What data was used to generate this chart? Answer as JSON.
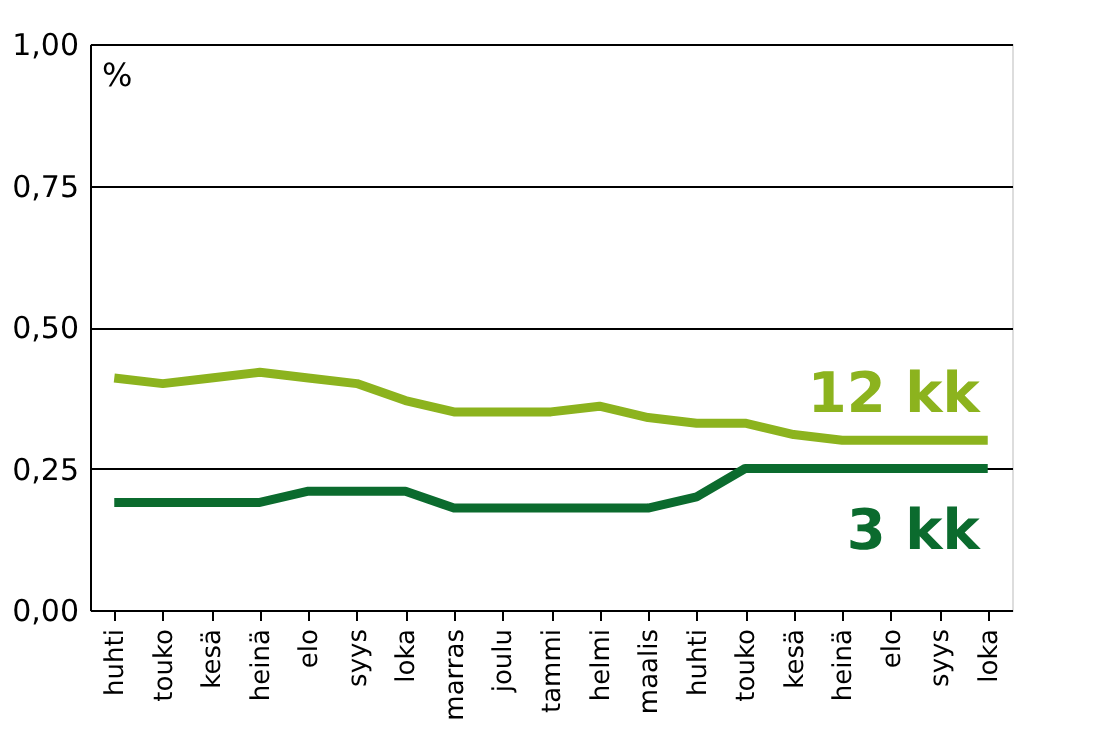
{
  "chart_data": {
    "type": "line",
    "ylabel": "%",
    "categories": [
      "huhti",
      "touko",
      "kesä",
      "heinä",
      "elo",
      "syys",
      "loka",
      "marras",
      "joulu",
      "tammi",
      "helmi",
      "maalis",
      "huhti",
      "touko",
      "kesä",
      "heinä",
      "elo",
      "syys",
      "loka"
    ],
    "series": [
      {
        "name": "12 kk",
        "color": "#8cb31e",
        "values": [
          0.41,
          0.4,
          0.41,
          0.42,
          0.41,
          0.4,
          0.37,
          0.35,
          0.35,
          0.35,
          0.36,
          0.34,
          0.33,
          0.33,
          0.31,
          0.3,
          0.3,
          0.3,
          0.3
        ]
      },
      {
        "name": "3 kk",
        "color": "#0b6b2e",
        "values": [
          0.19,
          0.19,
          0.19,
          0.19,
          0.21,
          0.21,
          0.21,
          0.18,
          0.18,
          0.18,
          0.18,
          0.18,
          0.2,
          0.25,
          0.25,
          0.25,
          0.25,
          0.25,
          0.25
        ]
      }
    ],
    "ylim": [
      0,
      1
    ],
    "yticks": [
      {
        "value": 0,
        "label": "0,00"
      },
      {
        "value": 0.25,
        "label": "0,25"
      },
      {
        "value": 0.5,
        "label": "0,50"
      },
      {
        "value": 0.75,
        "label": "0,75"
      },
      {
        "value": 1,
        "label": "1,00"
      }
    ],
    "grid": "y",
    "legend": false,
    "marker": "none",
    "line_style": "solid"
  }
}
